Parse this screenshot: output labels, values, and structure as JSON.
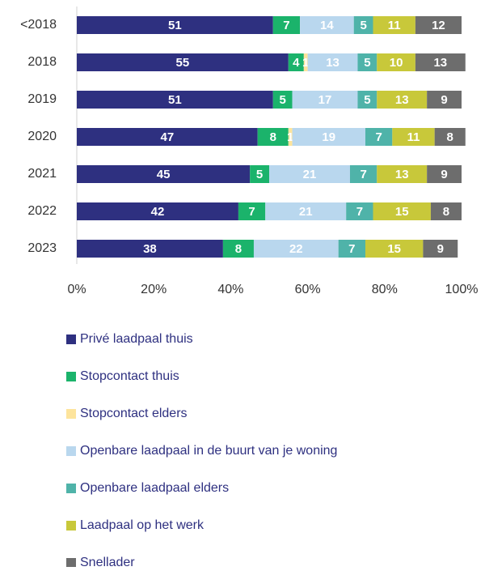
{
  "chart_data": {
    "type": "stacked-bar-horizontal",
    "categories": [
      "<2018",
      "2018",
      "2019",
      "2020",
      "2021",
      "2022",
      "2023"
    ],
    "series": [
      {
        "name": "Privé laadpaal thuis",
        "color": "#2e3080",
        "values": [
          51,
          55,
          51,
          47,
          45,
          42,
          38
        ]
      },
      {
        "name": "Stopcontact thuis",
        "color": "#1bb36b",
        "values": [
          7,
          4,
          5,
          8,
          5,
          7,
          8
        ]
      },
      {
        "name": "Stopcontact elders",
        "color": "#fde49c",
        "values": [
          0,
          1,
          0,
          1,
          0,
          0,
          0
        ]
      },
      {
        "name": "Openbare laadpaal in de buurt van je woning",
        "color": "#b9d7ee",
        "values": [
          14,
          13,
          17,
          19,
          21,
          21,
          22
        ]
      },
      {
        "name": "Openbare laadpaal elders",
        "color": "#4fb3a9",
        "values": [
          5,
          5,
          5,
          7,
          7,
          7,
          7
        ]
      },
      {
        "name": "Laadpaal op het werk",
        "color": "#c8c83a",
        "values": [
          11,
          10,
          13,
          11,
          13,
          15,
          15
        ]
      },
      {
        "name": "Snellader",
        "color": "#6d6d6d",
        "values": [
          12,
          13,
          9,
          8,
          9,
          8,
          9
        ]
      }
    ],
    "xlim": [
      0,
      100
    ],
    "xticks": [
      {
        "value": 0,
        "label": "0%"
      },
      {
        "value": 20,
        "label": "20%"
      },
      {
        "value": 40,
        "label": "40%"
      },
      {
        "value": 60,
        "label": "60%"
      },
      {
        "value": 80,
        "label": "80%"
      },
      {
        "value": 100,
        "label": "100%"
      }
    ]
  }
}
